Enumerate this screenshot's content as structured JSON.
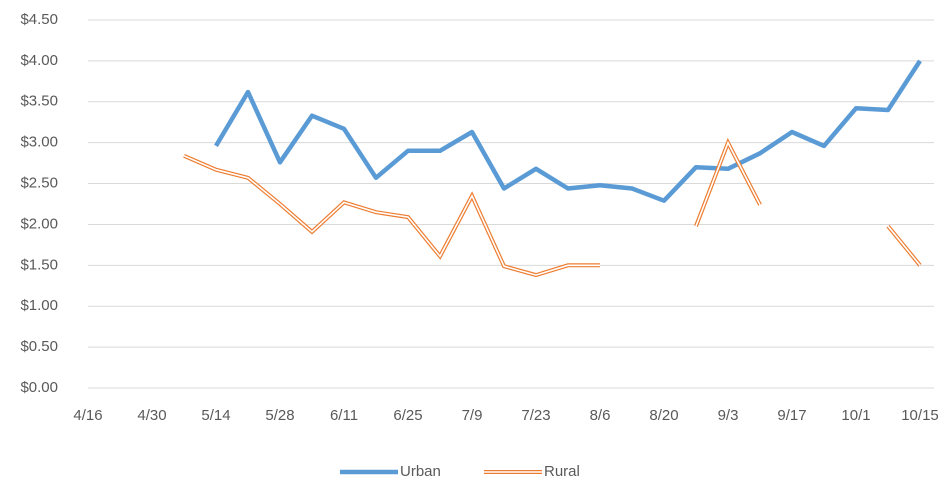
{
  "chart_data": {
    "type": "line",
    "categories": [
      "4/16",
      null,
      "4/30",
      null,
      "5/14",
      null,
      "5/28",
      null,
      "6/11",
      null,
      "6/25",
      null,
      "7/9",
      null,
      "7/23",
      null,
      "8/6",
      null,
      "8/20",
      null,
      "9/3",
      null,
      "9/17",
      null,
      "10/1",
      null,
      "10/15"
    ],
    "series": [
      {
        "name": "Urban",
        "color": "#5b9bd5",
        "values": [
          null,
          null,
          null,
          null,
          2.96,
          3.62,
          2.76,
          3.33,
          3.17,
          2.57,
          2.9,
          2.9,
          3.13,
          2.44,
          2.68,
          2.44,
          2.48,
          2.44,
          2.29,
          2.7,
          2.68,
          2.87,
          3.13,
          2.96,
          3.42,
          3.4,
          4.0
        ]
      },
      {
        "name": "Rural",
        "color": "#ed7d31",
        "values": [
          null,
          null,
          null,
          2.84,
          2.67,
          2.57,
          2.25,
          1.91,
          2.27,
          2.15,
          2.09,
          1.61,
          2.35,
          1.49,
          1.38,
          1.5,
          1.5,
          null,
          null,
          1.98,
          3.0,
          2.24,
          null,
          null,
          null,
          1.98,
          1.5
        ]
      }
    ],
    "ylim": [
      0,
      4.5
    ],
    "yticks": [
      {
        "value": 0,
        "label": "$0.00"
      },
      {
        "value": 0.5,
        "label": "$0.50"
      },
      {
        "value": 1,
        "label": "$1.00"
      },
      {
        "value": 1.5,
        "label": "$1.50"
      },
      {
        "value": 2,
        "label": "$2.00"
      },
      {
        "value": 2.5,
        "label": "$2.50"
      },
      {
        "value": 3,
        "label": "$3.00"
      },
      {
        "value": 3.5,
        "label": "$3.50"
      },
      {
        "value": 4,
        "label": "$4.00"
      },
      {
        "value": 4.5,
        "label": "$4.50"
      }
    ],
    "grid": true,
    "legend": "bottom"
  }
}
